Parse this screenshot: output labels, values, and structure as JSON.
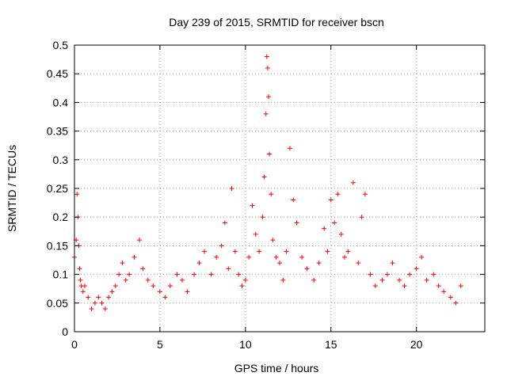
{
  "chart_data": {
    "type": "scatter",
    "title": "Day 239 of 2015, SRMTID for receiver bscn",
    "xlabel": "GPS time / hours",
    "ylabel": "SRMTID / TECUs",
    "xlim": [
      0,
      24
    ],
    "ylim": [
      0,
      0.5
    ],
    "xticks": [
      0,
      5,
      10,
      15,
      20
    ],
    "xtick_labels": [
      "0",
      "5",
      "10",
      "15",
      "20"
    ],
    "yticks": [
      0,
      0.05,
      0.1,
      0.15,
      0.2,
      0.25,
      0.3,
      0.35,
      0.4,
      0.45,
      0.5
    ],
    "ytick_labels": [
      "0",
      "0.05",
      "0.1",
      "0.15",
      "0.2",
      "0.25",
      "0.3",
      "0.35",
      "0.4",
      "0.45",
      "0.5"
    ],
    "grid": true,
    "marker": "+",
    "color": "#ff0000",
    "series": [
      {
        "name": "SRMTID",
        "x": [
          0.0,
          0.1,
          0.15,
          0.2,
          0.25,
          0.3,
          0.35,
          0.4,
          0.5,
          0.6,
          0.8,
          1.0,
          1.2,
          1.4,
          1.6,
          1.8,
          2.0,
          2.2,
          2.4,
          2.6,
          2.8,
          3.0,
          3.2,
          3.5,
          3.8,
          4.0,
          4.3,
          4.6,
          5.0,
          5.3,
          5.6,
          6.0,
          6.3,
          6.6,
          7.0,
          7.3,
          7.6,
          8.0,
          8.3,
          8.6,
          8.8,
          9.0,
          9.2,
          9.4,
          9.6,
          9.8,
          10.0,
          10.2,
          10.4,
          10.6,
          10.8,
          11.0,
          11.1,
          11.2,
          11.25,
          11.3,
          11.35,
          11.4,
          11.5,
          11.6,
          11.8,
          12.0,
          12.2,
          12.4,
          12.6,
          12.8,
          13.0,
          13.3,
          13.6,
          14.0,
          14.3,
          14.6,
          14.8,
          15.0,
          15.2,
          15.4,
          15.6,
          15.8,
          16.0,
          16.3,
          16.6,
          16.8,
          17.0,
          17.3,
          17.6,
          18.0,
          18.3,
          18.6,
          19.0,
          19.3,
          19.6,
          20.0,
          20.3,
          20.6,
          21.0,
          21.3,
          21.6,
          22.0,
          22.3,
          22.6
        ],
        "y": [
          0.13,
          0.16,
          0.24,
          0.2,
          0.15,
          0.11,
          0.09,
          0.08,
          0.07,
          0.08,
          0.06,
          0.04,
          0.05,
          0.06,
          0.05,
          0.04,
          0.06,
          0.07,
          0.08,
          0.1,
          0.12,
          0.09,
          0.1,
          0.13,
          0.16,
          0.11,
          0.09,
          0.08,
          0.07,
          0.06,
          0.08,
          0.1,
          0.09,
          0.07,
          0.1,
          0.12,
          0.14,
          0.1,
          0.13,
          0.15,
          0.19,
          0.11,
          0.25,
          0.14,
          0.1,
          0.08,
          0.09,
          0.13,
          0.22,
          0.17,
          0.14,
          0.2,
          0.27,
          0.38,
          0.48,
          0.46,
          0.41,
          0.31,
          0.24,
          0.16,
          0.13,
          0.12,
          0.09,
          0.14,
          0.32,
          0.23,
          0.19,
          0.13,
          0.11,
          0.09,
          0.12,
          0.18,
          0.14,
          0.23,
          0.19,
          0.24,
          0.17,
          0.13,
          0.14,
          0.26,
          0.12,
          0.2,
          0.24,
          0.1,
          0.08,
          0.09,
          0.1,
          0.12,
          0.09,
          0.08,
          0.1,
          0.11,
          0.13,
          0.09,
          0.1,
          0.08,
          0.07,
          0.06,
          0.05,
          0.08
        ]
      }
    ]
  }
}
